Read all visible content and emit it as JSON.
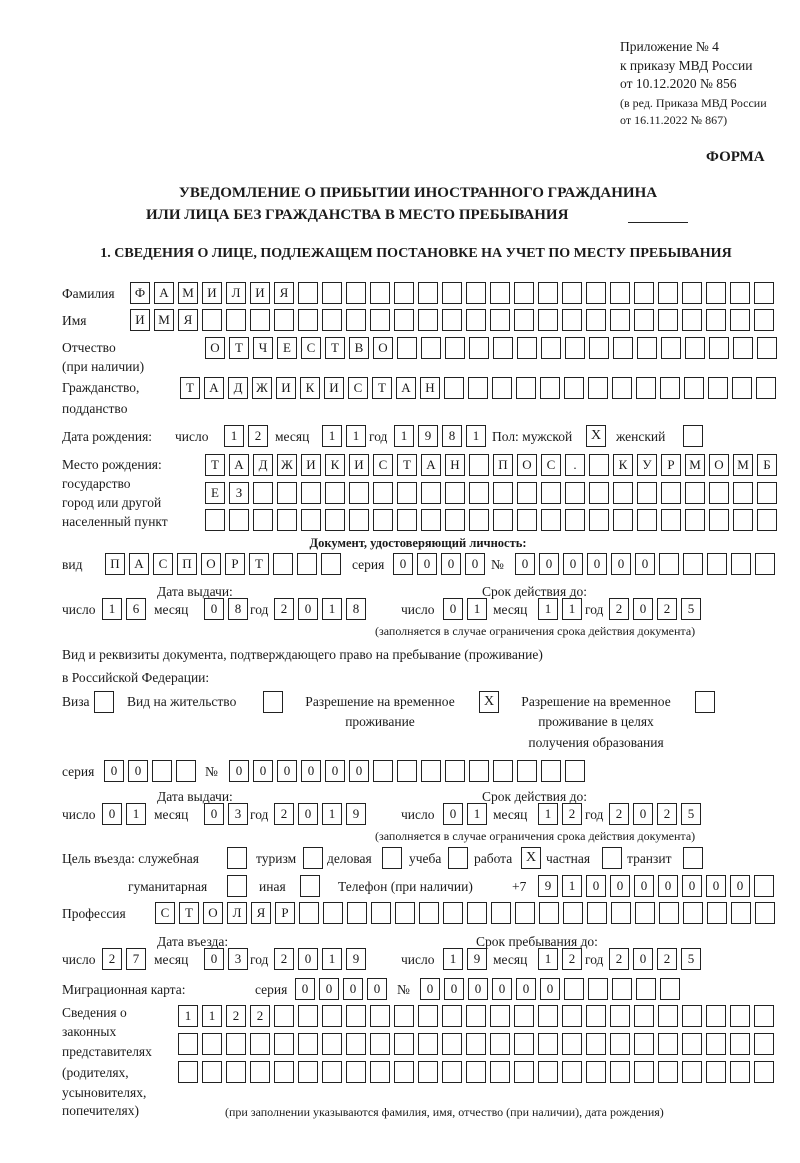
{
  "header": {
    "appendix": "Приложение № 4",
    "order": "к приказу МВД России",
    "order_date": "от 10.12.2020 № 856",
    "edition1": "(в ред. Приказа МВД России",
    "edition2": "от 16.11.2022 № 867)",
    "form_label": "ФОРМА",
    "title1": "УВЕДОМЛЕНИЕ О ПРИБЫТИИ ИНОСТРАННОГО ГРАЖДАНИНА",
    "title2": "ИЛИ ЛИЦА БЕЗ ГРАЖДАНСТВА В МЕСТО ПРЕБЫВАНИЯ"
  },
  "section1": {
    "heading": "1. СВЕДЕНИЯ О ЛИЦЕ, ПОДЛЕЖАЩЕМ ПОСТАНОВКЕ НА УЧЕТ ПО МЕСТУ ПРЕБЫВАНИЯ",
    "surname": {
      "label": "Фамилия",
      "value": "ФАМИЛИЯ"
    },
    "name": {
      "label": "Имя",
      "value": "ИМЯ"
    },
    "patronymic": {
      "label1": "Отчество",
      "label2": "(при наличии)",
      "value": "ОТЧЕСТВО"
    },
    "citizenship": {
      "label1": "Гражданство,",
      "label2": "подданство",
      "value": "ТАДЖИКИСТАН"
    },
    "birth_date": {
      "label": "Дата рождения:",
      "day_label": "число",
      "day": "12",
      "month_label": "месяц",
      "month": "11",
      "year_label": "год",
      "year": "1981"
    },
    "sex": {
      "label": "Пол: мужской",
      "male": "X",
      "female_label": "женский",
      "female": ""
    },
    "birth_place": {
      "label1": "Место рождения:",
      "label2": "государство",
      "label3": "город или другой",
      "label4": "населенный пункт",
      "line1": "ТАДЖИКИСТАН ПОС. КУРМОМБ",
      "line2": "ЕЗ",
      "line3": ""
    },
    "id_document": {
      "heading": "Документ, удостоверяющий личность:",
      "type_label": "вид",
      "type": "ПАСПОРТ",
      "series_label": "серия",
      "series": "0000",
      "number_label": "№",
      "number": "000000",
      "issue_label": "Дата выдачи:",
      "issue_day": "16",
      "issue_month": "08",
      "issue_year": "2018",
      "valid_label": "Срок действия до:",
      "valid_day": "01",
      "valid_month": "11",
      "valid_year": "2025",
      "note": "(заполняется в случае ограничения срока действия документа)"
    },
    "residence_doc": {
      "label1": "Вид и реквизиты документа, подтверждающего право на пребывание (проживание)",
      "label2": "в Российской Федерации:",
      "visa_label": "Виза",
      "visa": "",
      "permit_label": "Вид на жительство",
      "permit": "",
      "temp_label1": "Разрешение на временное",
      "temp_label2": "проживание",
      "temp": "X",
      "edu_label1": "Разрешение на временное",
      "edu_label2": "проживание в целях",
      "edu_label3": "получения образования",
      "edu": "",
      "series_label": "серия",
      "series": "00",
      "number_label": "№",
      "number": "000000",
      "issue_label": "Дата выдачи:",
      "issue_day": "01",
      "issue_month": "03",
      "issue_year": "2019",
      "valid_label": "Срок действия до:",
      "valid_day": "01",
      "valid_month": "12",
      "valid_year": "2025",
      "note": "(заполняется в случае ограничения срока действия документа)"
    },
    "purpose": {
      "label": "Цель въезда: служебная",
      "service": "",
      "tourism_label": "туризм",
      "tourism": "",
      "business_label": "деловая",
      "business": "",
      "study_label": "учеба",
      "study": "",
      "work_label": "работа",
      "work": "X",
      "private_label": "частная",
      "private": "",
      "transit_label": "транзит",
      "transit": "",
      "humanitarian_label": "гуманитарная",
      "humanitarian": "",
      "other_label": "иная",
      "other": ""
    },
    "phone": {
      "label": "Телефон (при наличии)",
      "prefix": "+7",
      "value": "910000000"
    },
    "profession": {
      "label": "Профессия",
      "value": "СТОЛЯР"
    },
    "entry": {
      "entry_label": "Дата въезда:",
      "entry_day": "27",
      "entry_month": "03",
      "entry_year": "2019",
      "stay_label": "Срок пребывания до:",
      "stay_day": "19",
      "stay_month": "12",
      "stay_year": "2025"
    },
    "migration_card": {
      "label": "Миграционная карта:",
      "series_label": "серия",
      "series": "0000",
      "number_label": "№",
      "number": "000000"
    },
    "representatives": {
      "label1": "Сведения о",
      "label2": "законных",
      "label3": "представителях",
      "label4": "(родителях,",
      "label5": "усыновителях,",
      "label6": "попечителях)",
      "line1": "1122",
      "line2": "",
      "line3": "",
      "note": "(при заполнении указываются фамилия, имя, отчество (при наличии), дата рождения)"
    },
    "common": {
      "day_label": "число",
      "month_label": "месяц",
      "year_label": "год"
    }
  }
}
